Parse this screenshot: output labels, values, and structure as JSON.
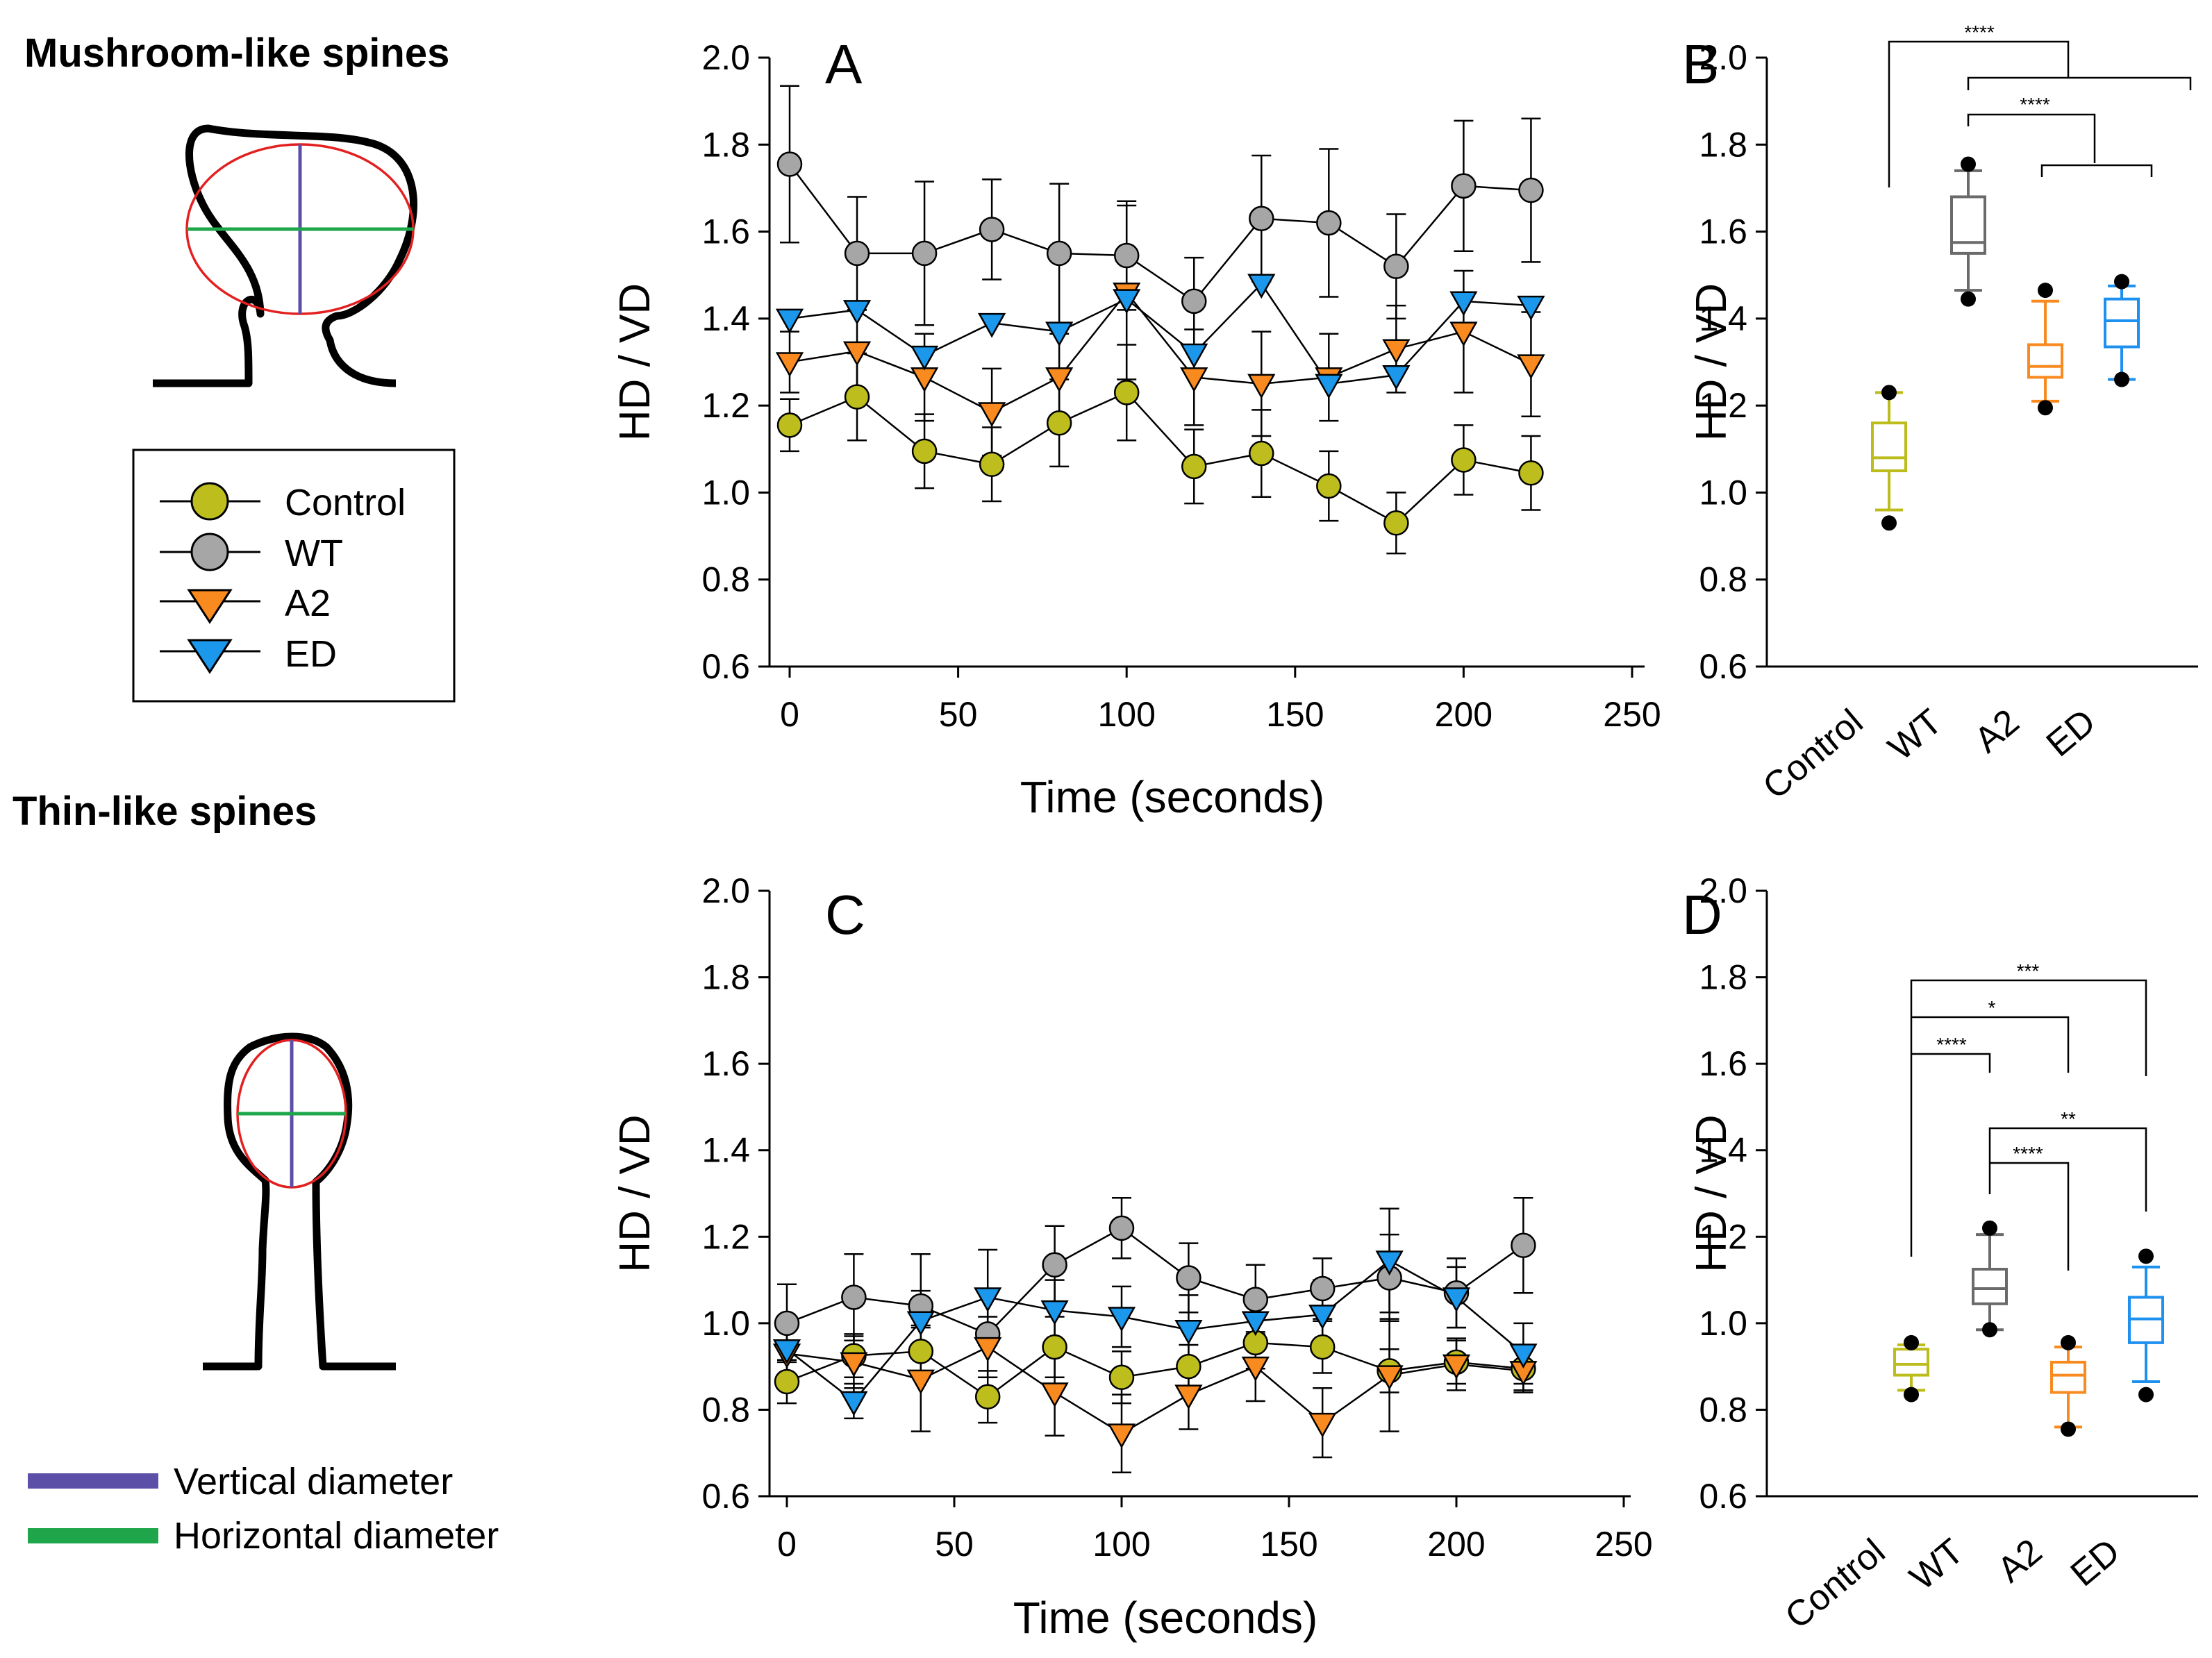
{
  "left_panel": {
    "mushroom_title": "Mushroom-like spines",
    "thin_title": "Thin-like spines",
    "legend": [
      "Control",
      "WT",
      "A2",
      "ED"
    ],
    "diameter_legend": {
      "vertical": "Vertical diameter",
      "horizontal": "Horizontal diameter"
    }
  },
  "colors": {
    "Control": "#bdbd1e",
    "WT": "#a6a6a6",
    "A2": "#f98a20",
    "ED": "#1b98ec",
    "vertical_line": "#5b4fa7",
    "horizontal_line": "#1fa64a",
    "outline_ellipse": "#e32020",
    "box_control": "#bcbc1c",
    "box_wt": "#6a6a6a",
    "box_a2": "#f88a20",
    "box_ed": "#1e90ef"
  },
  "chart_data": [
    {
      "id": "A",
      "panel_label": "A",
      "type": "line",
      "ylabel": "HD / VD",
      "xlabel": "Time (seconds)",
      "xlim": [
        0,
        250
      ],
      "ylim": [
        0.6,
        2.0
      ],
      "xticks": [
        "0",
        "50",
        "100",
        "150",
        "200",
        "250"
      ],
      "yticks": [
        "2.0",
        "1.8",
        "1.6",
        "1.4",
        "1.2",
        "1.0",
        "0.8",
        "0.6"
      ],
      "x": [
        0,
        20,
        40,
        60,
        80,
        100,
        120,
        140,
        160,
        180,
        200,
        220
      ],
      "series": [
        {
          "name": "Control",
          "marker": "circle",
          "values": [
            1.155,
            1.22,
            1.095,
            1.065,
            1.16,
            1.23,
            1.06,
            1.09,
            1.015,
            0.93,
            1.075,
            1.045
          ],
          "errors": [
            0.06,
            0.1,
            0.085,
            0.085,
            0.1,
            0.11,
            0.085,
            0.1,
            0.08,
            0.07,
            0.08,
            0.085
          ]
        },
        {
          "name": "WT",
          "marker": "circle",
          "values": [
            1.755,
            1.55,
            1.55,
            1.605,
            1.55,
            1.545,
            1.44,
            1.63,
            1.62,
            1.52,
            1.705,
            1.695
          ],
          "errors": [
            0.18,
            0.13,
            0.165,
            0.115,
            0.16,
            0.125,
            0.1,
            0.145,
            0.17,
            0.12,
            0.15,
            0.165
          ]
        },
        {
          "name": "A2",
          "marker": "triangle-down",
          "values": [
            1.3,
            1.325,
            1.265,
            1.185,
            1.265,
            1.46,
            1.265,
            1.25,
            1.265,
            1.33,
            1.37,
            1.295
          ],
          "errors": [
            0.07,
            0.095,
            0.1,
            0.1,
            0.1,
            0.2,
            0.11,
            0.12,
            0.1,
            0.1,
            0.14,
            0.12
          ]
        },
        {
          "name": "ED",
          "marker": "triangle-down",
          "values": [
            1.4,
            1.42,
            1.315,
            1.39,
            1.37,
            1.445,
            1.32,
            1.48,
            1.25,
            1.27,
            1.44,
            1.43
          ]
        }
      ]
    },
    {
      "id": "B",
      "panel_label": "B",
      "type": "box",
      "ylabel": "HD / VD",
      "ylim": [
        0.6,
        2.0
      ],
      "yticks": [
        "2.0",
        "1.8",
        "1.6",
        "1.4",
        "1.2",
        "1.0",
        "0.8",
        "0.6"
      ],
      "categories": [
        "Control",
        "WT",
        "A2",
        "ED"
      ],
      "boxes": [
        {
          "min": 0.96,
          "q1": 1.05,
          "median": 1.08,
          "q3": 1.16,
          "max": 1.23,
          "outliers": [
            0.93,
            1.23
          ]
        },
        {
          "min": 1.465,
          "q1": 1.55,
          "median": 1.575,
          "q3": 1.68,
          "max": 1.74,
          "outliers": [
            1.445,
            1.755
          ]
        },
        {
          "min": 1.21,
          "q1": 1.265,
          "median": 1.29,
          "q3": 1.34,
          "max": 1.44,
          "outliers": [
            1.195,
            1.465
          ]
        },
        {
          "min": 1.26,
          "q1": 1.335,
          "median": 1.395,
          "q3": 1.445,
          "max": 1.475,
          "outliers": [
            1.26,
            1.485
          ]
        }
      ],
      "significance": [
        {
          "label": "****"
        },
        {
          "label": "****"
        }
      ]
    },
    {
      "id": "C",
      "panel_label": "C",
      "type": "line",
      "ylabel": "HD / VD",
      "xlabel": "Time (seconds)",
      "xlim": [
        0,
        250
      ],
      "ylim": [
        0.6,
        2.0
      ],
      "xticks": [
        "0",
        "50",
        "100",
        "150",
        "200",
        "250"
      ],
      "yticks": [
        "2.0",
        "1.8",
        "1.6",
        "1.4",
        "1.2",
        "1.0",
        "0.8",
        "0.6"
      ],
      "x": [
        0,
        20,
        40,
        60,
        80,
        100,
        120,
        140,
        160,
        180,
        200,
        220
      ],
      "series": [
        {
          "name": "Control",
          "marker": "circle",
          "values": [
            0.865,
            0.925,
            0.935,
            0.83,
            0.945,
            0.875,
            0.9,
            0.955,
            0.945,
            0.89,
            0.91,
            0.895
          ],
          "errors": [
            0.05,
            0.05,
            0.06,
            0.06,
            0.07,
            0.06,
            0.05,
            0.06,
            0.06,
            0.05,
            0.05,
            0.05
          ]
        },
        {
          "name": "WT",
          "marker": "circle",
          "values": [
            1.0,
            1.06,
            1.04,
            0.975,
            1.135,
            1.22,
            1.105,
            1.055,
            1.08,
            1.105,
            1.07,
            1.18
          ],
          "errors": [
            0.09,
            0.1,
            0.12,
            0.1,
            0.09,
            0.07,
            0.08,
            0.08,
            0.07,
            0.1,
            0.08,
            0.11
          ]
        },
        {
          "name": "A2",
          "marker": "triangle-down",
          "values": [
            0.93,
            0.91,
            0.87,
            0.945,
            0.84,
            0.745,
            0.835,
            0.9,
            0.77,
            0.88,
            0.905,
            0.89
          ],
          "errors": [
            0.06,
            0.06,
            0.12,
            0.07,
            0.1,
            0.09,
            0.08,
            0.08,
            0.08,
            0.13,
            0.06,
            0.05
          ]
        },
        {
          "name": "ED",
          "marker": "triangle-down",
          "values": [
            0.94,
            0.82,
            1.005,
            1.06,
            1.03,
            1.015,
            0.985,
            1.005,
            1.02,
            1.145,
            1.06,
            0.93
          ],
          "errors": [
            0.06,
            0.04,
            0.07,
            0.11,
            0.07,
            0.07,
            0.08,
            0.06,
            0.08,
            0.12,
            0.07,
            0.07
          ]
        }
      ]
    },
    {
      "id": "D",
      "panel_label": "D",
      "type": "box",
      "ylabel": "HD / VD",
      "ylim": [
        0.6,
        2.0
      ],
      "yticks": [
        "2.0",
        "1.8",
        "1.6",
        "1.4",
        "1.2",
        "1.0",
        "0.8",
        "0.6"
      ],
      "categories": [
        "Control",
        "WT",
        "A2",
        "ED"
      ],
      "boxes": [
        {
          "min": 0.845,
          "q1": 0.88,
          "median": 0.905,
          "q3": 0.94,
          "max": 0.95,
          "outliers": [
            0.835,
            0.955
          ]
        },
        {
          "min": 0.985,
          "q1": 1.045,
          "median": 1.08,
          "q3": 1.125,
          "max": 1.205,
          "outliers": [
            0.985,
            1.22
          ]
        },
        {
          "min": 0.76,
          "q1": 0.84,
          "median": 0.88,
          "q3": 0.91,
          "max": 0.945,
          "outliers": [
            0.755,
            0.955
          ]
        },
        {
          "min": 0.865,
          "q1": 0.955,
          "median": 1.01,
          "q3": 1.06,
          "max": 1.13,
          "outliers": [
            0.835,
            1.155
          ]
        }
      ],
      "significance": [
        {
          "label": "***"
        },
        {
          "label": "*"
        },
        {
          "label": "****"
        },
        {
          "label": "**"
        },
        {
          "label": "****"
        }
      ]
    }
  ]
}
